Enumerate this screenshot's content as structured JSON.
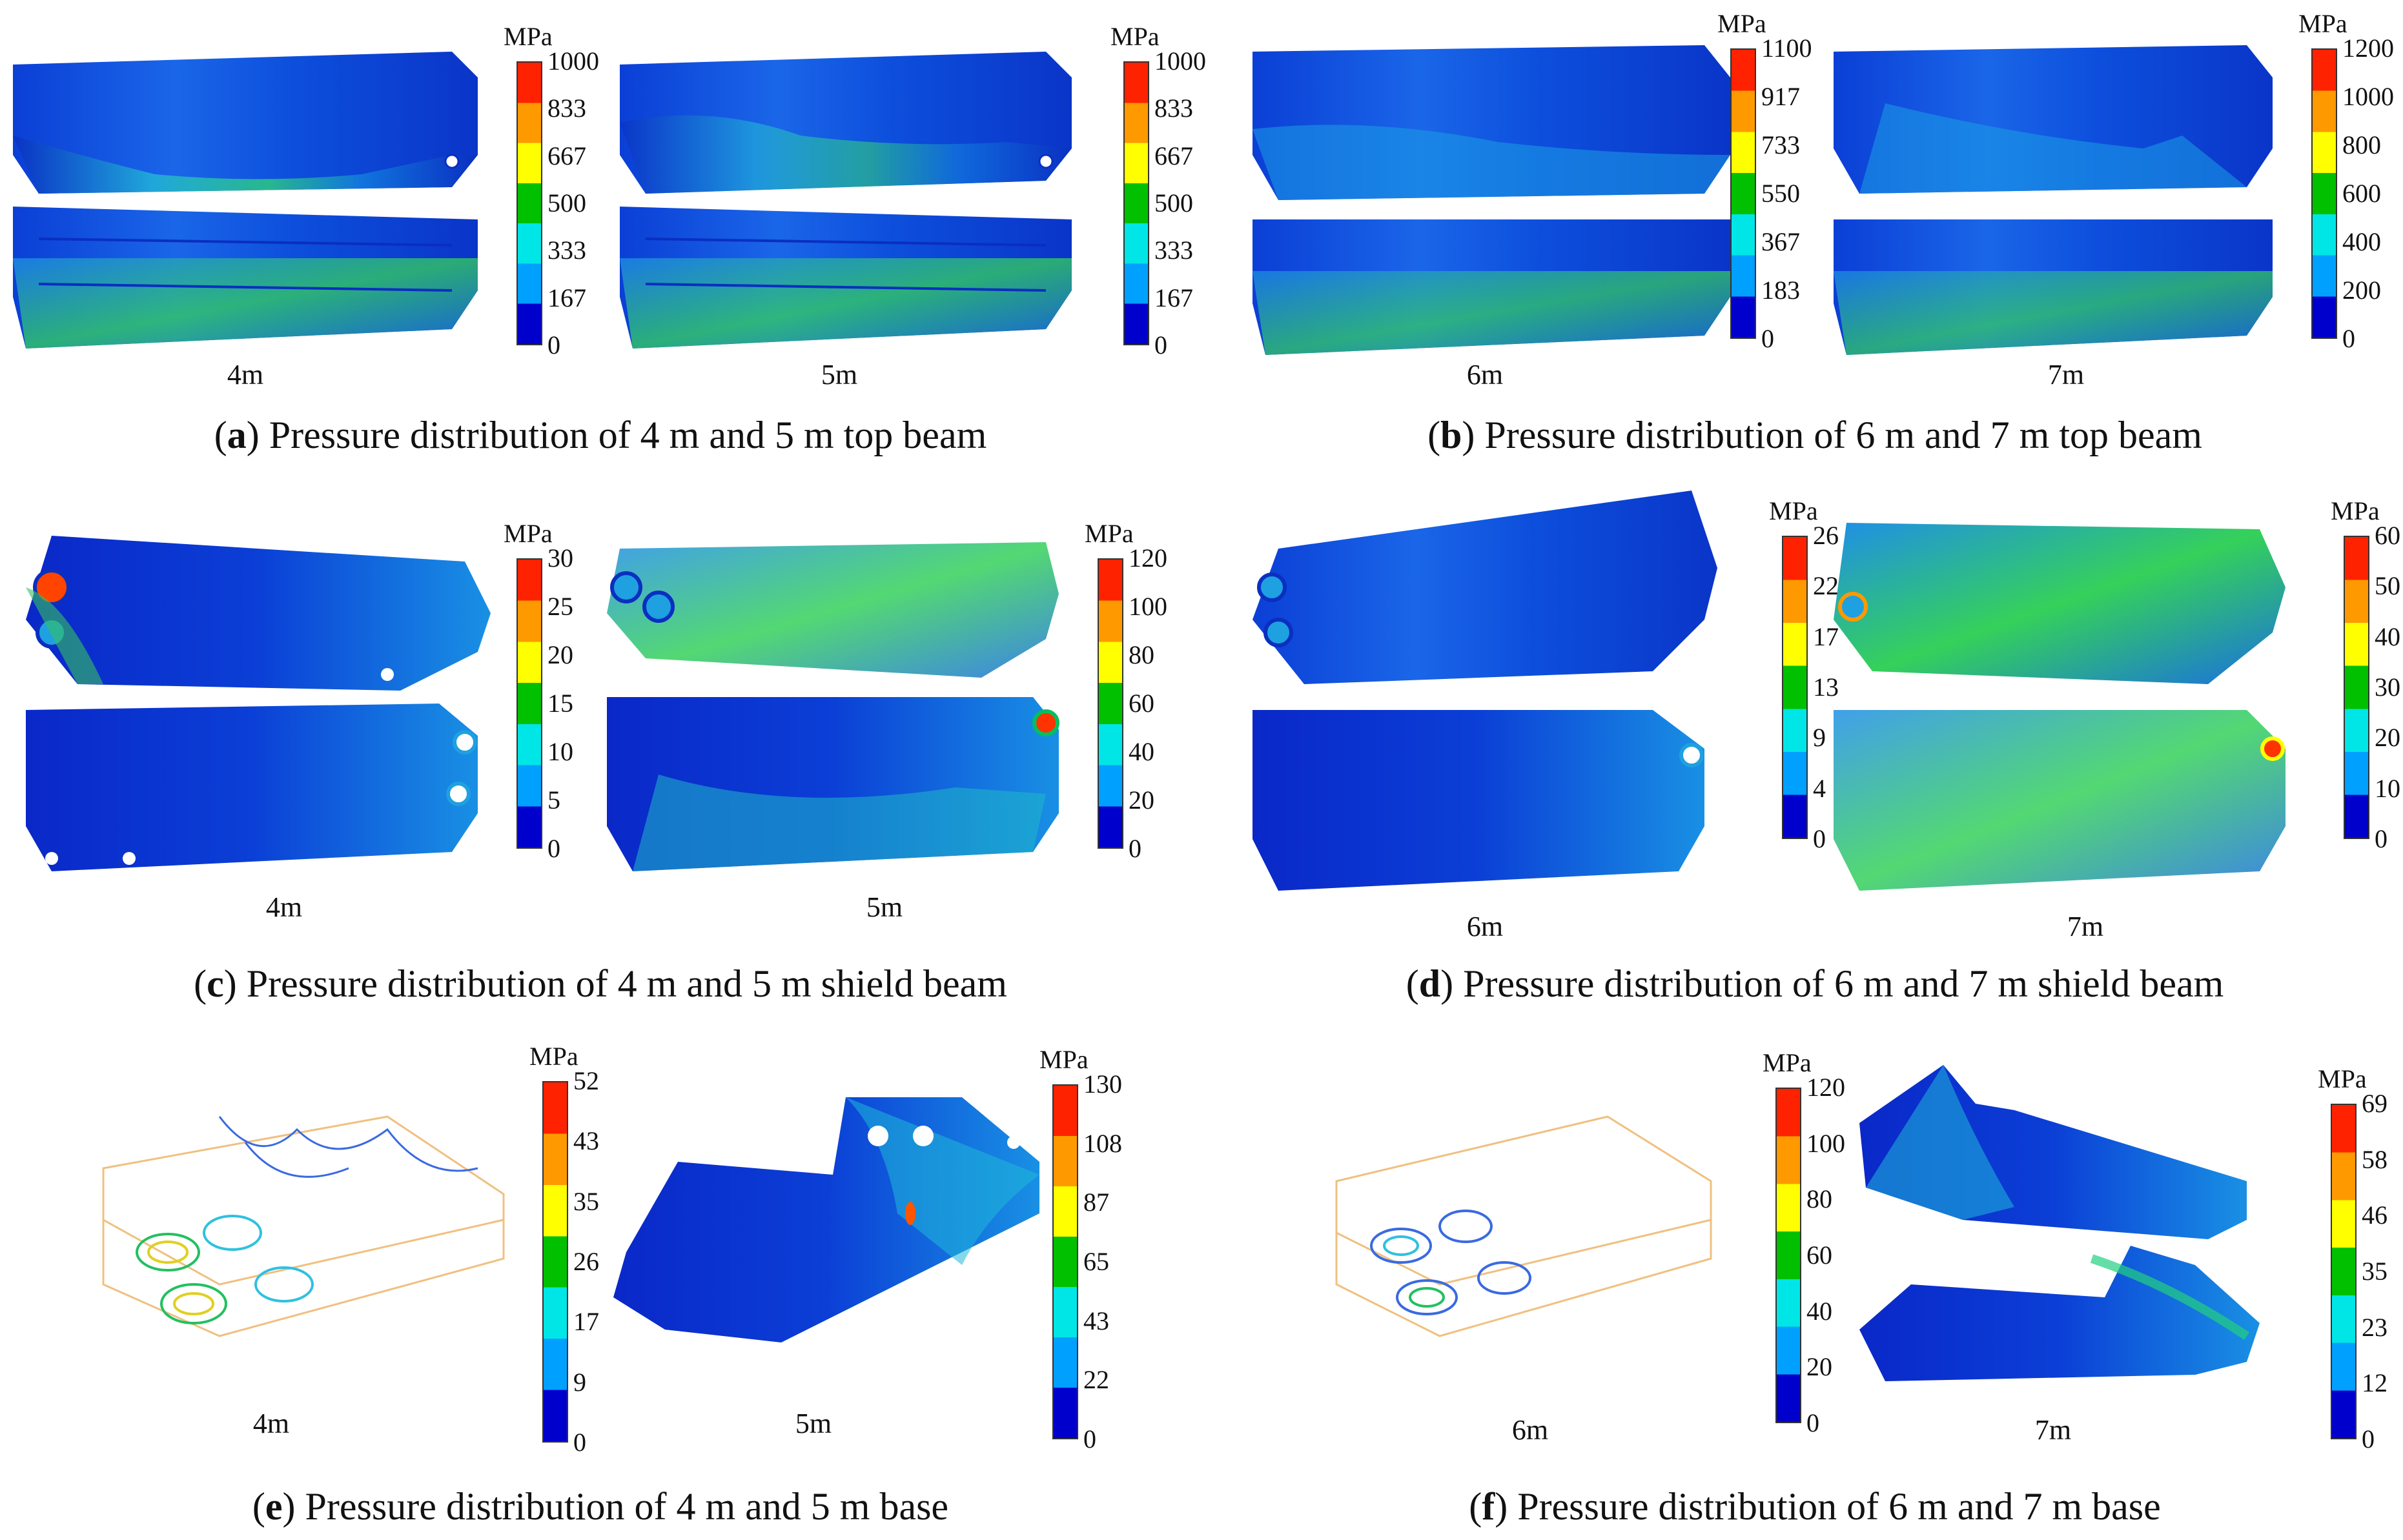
{
  "units": "MPa",
  "colorbar_colors": [
    "#0000cc",
    "#00a0ff",
    "#00e6e6",
    "#00c000",
    "#ffff00",
    "#ff9900",
    "#ff2200"
  ],
  "panels": [
    {
      "id": "a",
      "letter": "a",
      "caption": " Pressure distribution of 4 m and 5 m top beam",
      "views": [
        {
          "label": "4m",
          "ticks": [
            "1000",
            "833",
            "667",
            "500",
            "333",
            "167",
            "0"
          ]
        },
        {
          "label": "5m",
          "ticks": [
            "1000",
            "833",
            "667",
            "500",
            "333",
            "167",
            "0"
          ]
        }
      ]
    },
    {
      "id": "b",
      "letter": "b",
      "caption": " Pressure distribution of 6 m and 7 m top beam",
      "views": [
        {
          "label": "6m",
          "ticks": [
            "1100",
            "917",
            "733",
            "550",
            "367",
            "183",
            "0"
          ]
        },
        {
          "label": "7m",
          "ticks": [
            "1200",
            "1000",
            "800",
            "600",
            "400",
            "200",
            "0"
          ]
        }
      ]
    },
    {
      "id": "c",
      "letter": "c",
      "caption": " Pressure distribution of 4 m and 5 m shield beam",
      "views": [
        {
          "label": "4m",
          "ticks": [
            "30",
            "25",
            "20",
            "15",
            "10",
            "5",
            "0"
          ]
        },
        {
          "label": "5m",
          "ticks": [
            "120",
            "100",
            "80",
            "60",
            "40",
            "20",
            "0"
          ]
        }
      ]
    },
    {
      "id": "d",
      "letter": "d",
      "caption": " Pressure distribution of 6 m and 7 m shield beam",
      "views": [
        {
          "label": "6m",
          "ticks": [
            "26",
            "22",
            "17",
            "13",
            "9",
            "4",
            "0"
          ]
        },
        {
          "label": "7m",
          "ticks": [
            "60",
            "50",
            "40",
            "30",
            "20",
            "10",
            "0"
          ]
        }
      ]
    },
    {
      "id": "e",
      "letter": "e",
      "caption": " Pressure distribution of 4 m and 5 m base",
      "views": [
        {
          "label": "4m",
          "ticks": [
            "52",
            "43",
            "35",
            "26",
            "17",
            "9",
            "0"
          ]
        },
        {
          "label": "5m",
          "ticks": [
            "130",
            "108",
            "87",
            "65",
            "43",
            "22",
            "0"
          ]
        }
      ]
    },
    {
      "id": "f",
      "letter": "f",
      "caption": " Pressure distribution of 6 m and 7 m base",
      "views": [
        {
          "label": "6m",
          "ticks": [
            "120",
            "100",
            "80",
            "60",
            "40",
            "20",
            "0"
          ]
        },
        {
          "label": "7m",
          "ticks": [
            "69",
            "58",
            "46",
            "35",
            "23",
            "12",
            "0"
          ]
        }
      ]
    }
  ]
}
